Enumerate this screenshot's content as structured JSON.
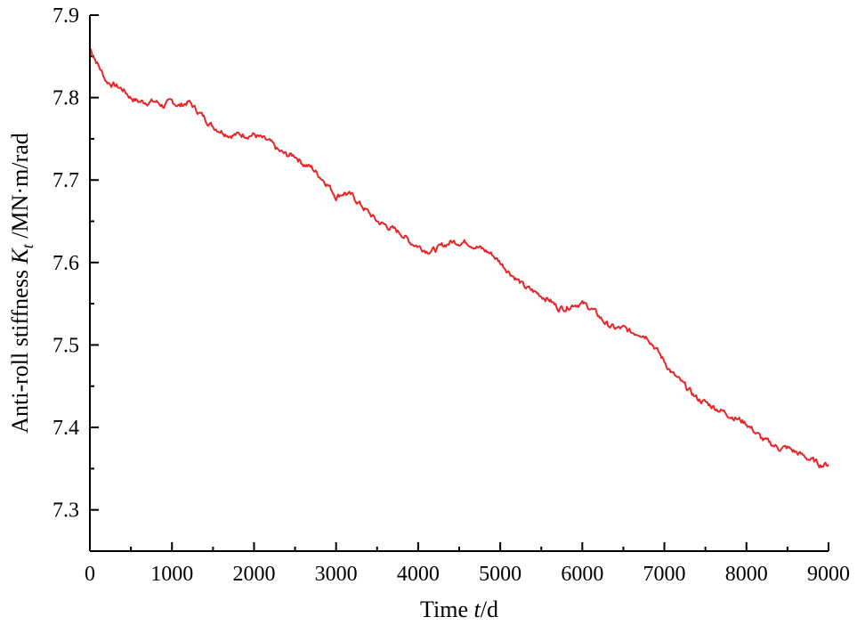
{
  "chart_data": {
    "type": "line",
    "title": "",
    "xlabel": {
      "prefix": "Time ",
      "italic": "t",
      "suffix": "/d"
    },
    "ylabel": {
      "prefix": "Anti-roll stiffness ",
      "italic": "K",
      "sub": "t",
      "suffix": " /MN·m/rad"
    },
    "xlim": [
      0,
      9000
    ],
    "ylim": [
      7.25,
      7.9
    ],
    "xticks": [
      0,
      1000,
      2000,
      3000,
      4000,
      5000,
      6000,
      7000,
      8000,
      9000
    ],
    "xtick_labels": [
      "0",
      "1000",
      "2000",
      "3000",
      "4000",
      "5000",
      "6000",
      "7000",
      "8000",
      "9000"
    ],
    "yticks": [
      7.3,
      7.4,
      7.5,
      7.6,
      7.7,
      7.8,
      7.9
    ],
    "ytick_labels": [
      "7.3",
      "7.4",
      "7.5",
      "7.6",
      "7.7",
      "7.8",
      "7.9"
    ],
    "grid": false,
    "legend": "none",
    "series": [
      {
        "color": "#e8262a",
        "x": [
          0,
          100,
          200,
          300,
          400,
          500,
          600,
          700,
          800,
          900,
          1000,
          1100,
          1200,
          1300,
          1400,
          1500,
          1600,
          1700,
          1800,
          1900,
          2000,
          2100,
          2200,
          2300,
          2400,
          2500,
          2600,
          2700,
          2800,
          2900,
          3000,
          3100,
          3200,
          3300,
          3400,
          3500,
          3600,
          3700,
          3800,
          3900,
          4000,
          4100,
          4200,
          4300,
          4400,
          4500,
          4600,
          4700,
          4800,
          4900,
          5000,
          5100,
          5200,
          5300,
          5400,
          5500,
          5600,
          5700,
          5800,
          5900,
          6000,
          6100,
          6200,
          6300,
          6400,
          6500,
          6600,
          6700,
          6800,
          6900,
          7000,
          7100,
          7200,
          7300,
          7400,
          7500,
          7600,
          7700,
          7800,
          7900,
          8000,
          8100,
          8200,
          8300,
          8400,
          8500,
          8600,
          8700,
          8800,
          8900,
          9000
        ],
        "values": [
          7.86,
          7.84,
          7.82,
          7.815,
          7.81,
          7.8,
          7.795,
          7.795,
          7.795,
          7.79,
          7.795,
          7.79,
          7.795,
          7.785,
          7.775,
          7.765,
          7.76,
          7.755,
          7.755,
          7.755,
          7.755,
          7.75,
          7.745,
          7.735,
          7.73,
          7.73,
          7.72,
          7.715,
          7.705,
          7.695,
          7.68,
          7.685,
          7.68,
          7.67,
          7.66,
          7.65,
          7.645,
          7.64,
          7.635,
          7.625,
          7.62,
          7.615,
          7.615,
          7.62,
          7.625,
          7.625,
          7.625,
          7.62,
          7.615,
          7.61,
          7.6,
          7.59,
          7.58,
          7.57,
          7.565,
          7.56,
          7.555,
          7.545,
          7.545,
          7.55,
          7.55,
          7.545,
          7.535,
          7.525,
          7.52,
          7.52,
          7.515,
          7.515,
          7.51,
          7.495,
          7.48,
          7.465,
          7.455,
          7.445,
          7.435,
          7.43,
          7.425,
          7.42,
          7.415,
          7.41,
          7.405,
          7.395,
          7.385,
          7.38,
          7.375,
          7.375,
          7.37,
          7.365,
          7.36,
          7.355,
          7.355
        ]
      }
    ]
  }
}
